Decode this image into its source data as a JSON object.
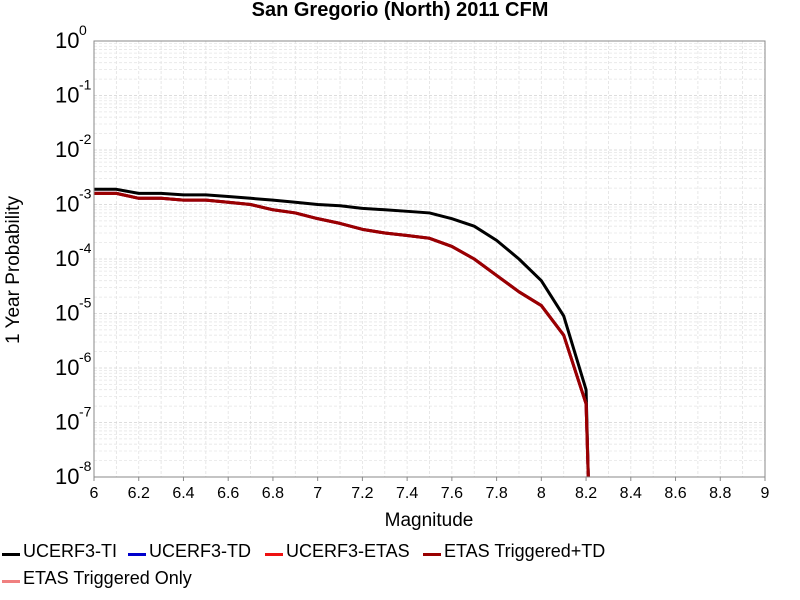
{
  "chart_data": {
    "type": "line",
    "title": "San Gregorio (North) 2011 CFM",
    "xlabel": "Magnitude",
    "ylabel": "1 Year Probability",
    "xlim": [
      6,
      9
    ],
    "ylim": [
      1e-08,
      1
    ],
    "yscale": "log",
    "grid": true,
    "legend_position": "bottom",
    "x_ticks": [
      "6",
      "6.2",
      "6.4",
      "6.6",
      "6.8",
      "7",
      "7.2",
      "7.4",
      "7.6",
      "7.8",
      "8",
      "8.2",
      "8.4",
      "8.6",
      "8.8",
      "9"
    ],
    "y_ticks": [
      {
        "base": "10",
        "exp": "0",
        "value": 1
      },
      {
        "base": "10",
        "exp": "-1",
        "value": 0.1
      },
      {
        "base": "10",
        "exp": "-2",
        "value": 0.01
      },
      {
        "base": "10",
        "exp": "-3",
        "value": 0.001
      },
      {
        "base": "10",
        "exp": "-4",
        "value": 0.0001
      },
      {
        "base": "10",
        "exp": "-5",
        "value": 1e-05
      },
      {
        "base": "10",
        "exp": "-6",
        "value": 1e-06
      },
      {
        "base": "10",
        "exp": "-7",
        "value": 1e-07
      },
      {
        "base": "10",
        "exp": "-8",
        "value": 1e-08
      }
    ],
    "series": [
      {
        "name": "UCERF3-TI",
        "color": "#000000",
        "x": [
          6.0,
          6.1,
          6.2,
          6.3,
          6.4,
          6.5,
          6.6,
          6.7,
          6.8,
          6.9,
          7.0,
          7.1,
          7.2,
          7.3,
          7.4,
          7.5,
          7.6,
          7.7,
          7.8,
          7.9,
          8.0,
          8.1,
          8.2,
          8.21
        ],
        "y": [
          0.0019,
          0.0019,
          0.0016,
          0.0016,
          0.0015,
          0.0015,
          0.0014,
          0.0013,
          0.0012,
          0.0011,
          0.001,
          0.00095,
          0.00085,
          0.0008,
          0.00075,
          0.0007,
          0.00055,
          0.0004,
          0.00022,
          0.0001,
          4e-05,
          9e-06,
          4e-07,
          1e-08
        ]
      },
      {
        "name": "UCERF3-TD",
        "color": "#0000cc",
        "x": [
          6.0,
          6.1,
          6.2,
          6.3,
          6.4,
          6.5,
          6.6,
          6.7,
          6.8,
          6.9,
          7.0,
          7.1,
          7.2,
          7.3,
          7.4,
          7.5,
          7.6,
          7.7,
          7.8,
          7.9,
          8.0,
          8.1,
          8.2,
          8.21
        ],
        "y": [
          0.0016,
          0.0016,
          0.0013,
          0.0013,
          0.0012,
          0.0012,
          0.0011,
          0.001,
          0.0008,
          0.0007,
          0.00055,
          0.00045,
          0.00035,
          0.0003,
          0.00027,
          0.00024,
          0.00017,
          0.0001,
          5e-05,
          2.5e-05,
          1.4e-05,
          4e-06,
          2.2e-07,
          1e-08
        ]
      },
      {
        "name": "UCERF3-ETAS",
        "color": "#ee1111",
        "x": [
          6.0,
          6.1,
          6.2,
          6.3,
          6.4,
          6.5,
          6.6,
          6.7,
          6.8,
          6.9,
          7.0,
          7.1,
          7.2,
          7.3,
          7.4,
          7.5,
          7.6,
          7.7,
          7.8,
          7.9,
          8.0,
          8.1,
          8.2,
          8.21
        ],
        "y": [
          0.0016,
          0.0016,
          0.0013,
          0.0013,
          0.0012,
          0.0012,
          0.0011,
          0.001,
          0.0008,
          0.0007,
          0.00055,
          0.00045,
          0.00035,
          0.0003,
          0.00027,
          0.00024,
          0.00017,
          0.0001,
          5e-05,
          2.5e-05,
          1.4e-05,
          4e-06,
          2.2e-07,
          1e-08
        ]
      },
      {
        "name": "ETAS Triggered+TD",
        "color": "#990000",
        "x": [
          6.0,
          6.1,
          6.2,
          6.3,
          6.4,
          6.5,
          6.6,
          6.7,
          6.8,
          6.9,
          7.0,
          7.1,
          7.2,
          7.3,
          7.4,
          7.5,
          7.6,
          7.7,
          7.8,
          7.9,
          8.0,
          8.1,
          8.2,
          8.21
        ],
        "y": [
          0.0016,
          0.0016,
          0.0013,
          0.0013,
          0.0012,
          0.0012,
          0.0011,
          0.001,
          0.0008,
          0.0007,
          0.00055,
          0.00045,
          0.00035,
          0.0003,
          0.00027,
          0.00024,
          0.00017,
          0.0001,
          5e-05,
          2.5e-05,
          1.4e-05,
          4e-06,
          2.2e-07,
          1e-08
        ]
      },
      {
        "name": "ETAS Triggered Only",
        "color": "#f08080",
        "x": [],
        "y": []
      }
    ]
  }
}
